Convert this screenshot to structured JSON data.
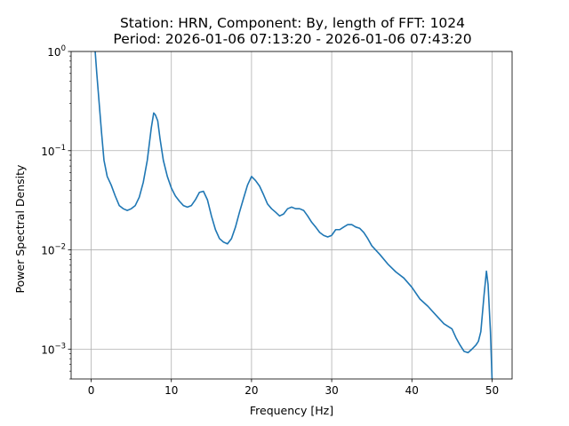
{
  "chart_data": {
    "type": "line",
    "title_line1": "Station: HRN, Component: By, length of FFT: 1024",
    "title_line2": "Period: 2026-01-06 07:13:20 - 2026-01-06 07:43:20",
    "xlabel": "Frequency [Hz]",
    "ylabel": "Power Spectral Density",
    "xlim": [
      -2.5,
      52.5
    ],
    "ylim": [
      0.0005,
      1
    ],
    "yscale": "log",
    "grid": true,
    "xticks": [
      {
        "value": 0,
        "label": "0"
      },
      {
        "value": 10,
        "label": "10"
      },
      {
        "value": 20,
        "label": "20"
      },
      {
        "value": 30,
        "label": "30"
      },
      {
        "value": 40,
        "label": "40"
      },
      {
        "value": 50,
        "label": "50"
      }
    ],
    "yticks": [
      {
        "value": 0.001,
        "base": "10",
        "exp": "−3"
      },
      {
        "value": 0.01,
        "base": "10",
        "exp": "−2"
      },
      {
        "value": 0.1,
        "base": "10",
        "exp": "−1"
      },
      {
        "value": 1,
        "base": "10",
        "exp": "0"
      }
    ],
    "series": [
      {
        "color": "#1f77b4",
        "x": [
          0.5,
          0.7,
          1.0,
          1.3,
          1.6,
          2.0,
          2.5,
          3.0,
          3.5,
          4.0,
          4.5,
          5.0,
          5.5,
          6.0,
          6.5,
          7.0,
          7.5,
          7.8,
          8.0,
          8.3,
          8.6,
          9.0,
          9.5,
          10.0,
          10.5,
          11.0,
          11.5,
          12.0,
          12.5,
          13.0,
          13.5,
          14.0,
          14.5,
          15.0,
          15.5,
          16.0,
          16.5,
          17.0,
          17.5,
          18.0,
          18.5,
          19.0,
          19.5,
          20.0,
          20.5,
          21.0,
          21.5,
          22.0,
          22.5,
          23.0,
          23.5,
          24.0,
          24.5,
          25.0,
          25.5,
          26.0,
          26.5,
          27.0,
          27.5,
          28.0,
          28.5,
          29.0,
          29.5,
          30.0,
          30.5,
          31.0,
          31.5,
          32.0,
          32.5,
          33.0,
          33.5,
          34.0,
          34.5,
          35.0,
          36.0,
          37.0,
          38.0,
          39.0,
          40.0,
          41.0,
          42.0,
          43.0,
          44.0,
          45.0,
          45.5,
          46.0,
          46.5,
          47.0,
          47.5,
          48.0,
          48.3,
          48.6,
          49.0,
          49.3,
          49.5,
          49.8,
          50.0
        ],
        "y": [
          1.0,
          0.6,
          0.3,
          0.15,
          0.08,
          0.055,
          0.045,
          0.035,
          0.028,
          0.026,
          0.025,
          0.026,
          0.028,
          0.034,
          0.048,
          0.08,
          0.17,
          0.24,
          0.23,
          0.2,
          0.13,
          0.08,
          0.055,
          0.042,
          0.035,
          0.031,
          0.028,
          0.027,
          0.028,
          0.032,
          0.038,
          0.039,
          0.032,
          0.022,
          0.016,
          0.013,
          0.012,
          0.0115,
          0.013,
          0.017,
          0.024,
          0.033,
          0.045,
          0.055,
          0.05,
          0.044,
          0.036,
          0.029,
          0.026,
          0.024,
          0.022,
          0.023,
          0.026,
          0.027,
          0.026,
          0.026,
          0.025,
          0.022,
          0.019,
          0.017,
          0.015,
          0.014,
          0.0135,
          0.014,
          0.016,
          0.016,
          0.017,
          0.018,
          0.018,
          0.017,
          0.0165,
          0.015,
          0.013,
          0.011,
          0.009,
          0.0072,
          0.006,
          0.0052,
          0.0042,
          0.0032,
          0.0027,
          0.0022,
          0.0018,
          0.0016,
          0.0013,
          0.0011,
          0.00095,
          0.00092,
          0.001,
          0.0011,
          0.0012,
          0.0015,
          0.0035,
          0.0061,
          0.0045,
          0.0015,
          0.0005
        ]
      }
    ]
  }
}
